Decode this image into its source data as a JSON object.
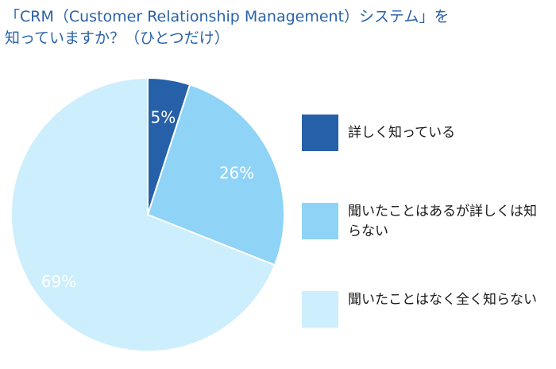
{
  "title_lines": [
    "「CRM（Customer Relationship Management）システム」を",
    "知っていますか？（ひとつだけ）"
  ],
  "chart_data": {
    "type": "pie",
    "categories": [
      "詳しく知っている",
      "聞いたことはあるが詳しくは知らない",
      "聞いたことはなく全く知らない"
    ],
    "values": [
      5,
      26,
      69
    ],
    "labels": [
      "5%",
      "26%",
      "69%"
    ],
    "colors": [
      "#2660a8",
      "#8fd3f7",
      "#cdeefc"
    ],
    "start": "12 o'clock",
    "direction": "clockwise",
    "legend_position": "right"
  },
  "legend": [
    {
      "label": "詳しく知っている",
      "color": "#2660a8"
    },
    {
      "label": "聞いたことはあるが詳しくは知らない",
      "color": "#8fd3f7"
    },
    {
      "label": "聞いたことはなく全く知らない",
      "color": "#cdeefc"
    }
  ]
}
